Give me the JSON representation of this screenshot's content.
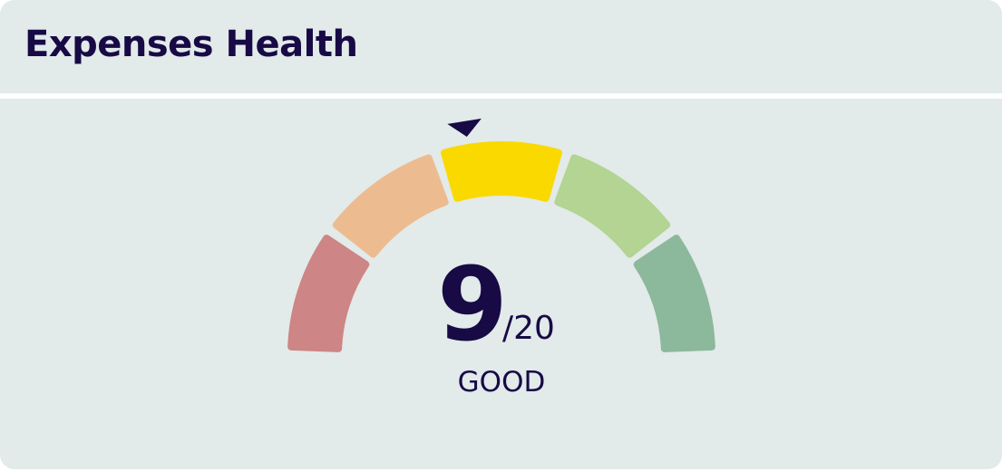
{
  "header": {
    "title": "Expenses Health"
  },
  "gauge": {
    "score": 9,
    "max": {
      "value": 20,
      "label": "/20"
    },
    "rating": "GOOD",
    "segment_colors": [
      "#cd8585",
      "#ecbc90",
      "#f9d900",
      "#b3d492",
      "#8cb89b"
    ],
    "pointer_color": "#170a45"
  }
}
